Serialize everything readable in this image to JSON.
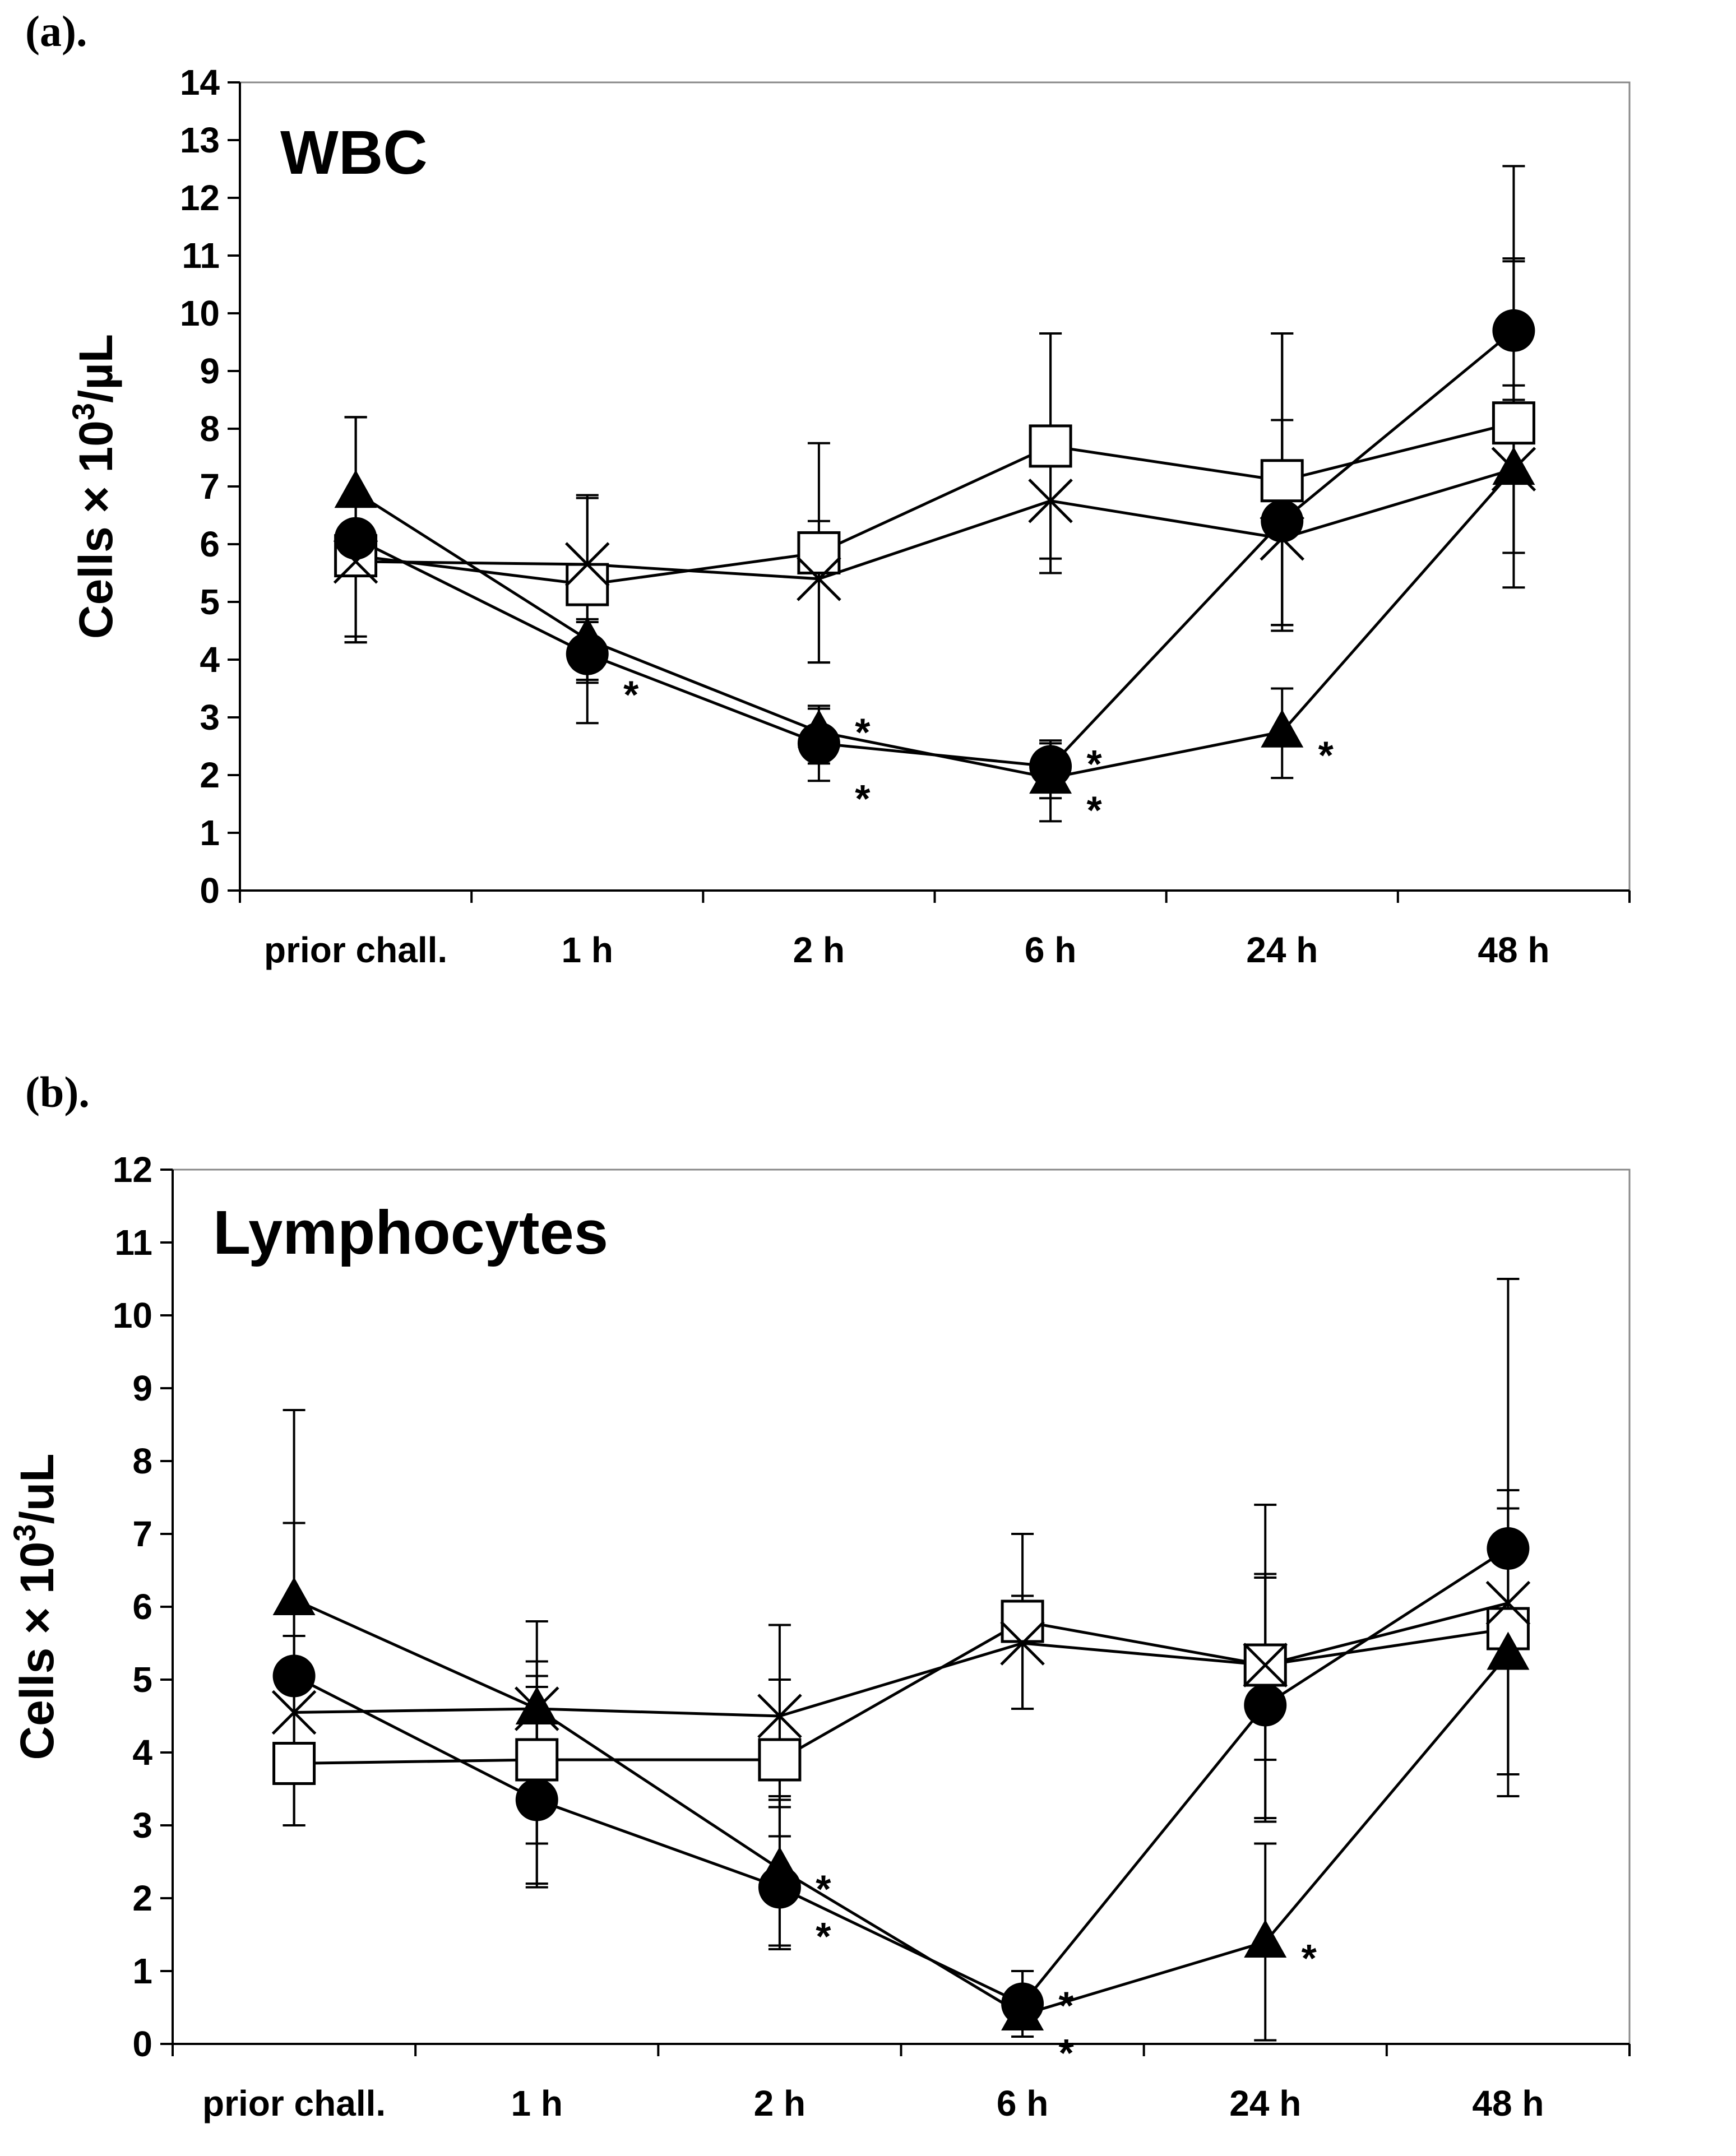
{
  "chart_data": [
    {
      "type": "line",
      "panel_label": "(a).",
      "title": "WBC",
      "ylabel_main": "Cells × 10",
      "ylabel_sup": "3",
      "ylabel_unit": "/µL",
      "ylim": [
        0,
        14
      ],
      "yticks": [
        "0",
        "1",
        "2",
        "3",
        "4",
        "5",
        "6",
        "7",
        "8",
        "9",
        "10",
        "11",
        "12",
        "13",
        "14"
      ],
      "categories": [
        "prior chall.",
        "1 h",
        "2 h",
        "6 h",
        "24 h",
        "48 h"
      ],
      "series": [
        {
          "name": "circle",
          "marker": "circle",
          "values": [
            6.1,
            4.1,
            2.55,
            2.15,
            6.4,
            9.7
          ],
          "err_up": [
            2.1,
            0.55,
            0.6,
            0.45,
            3.25,
            2.85
          ],
          "err_down": [
            1.8,
            1.2,
            0.65,
            0.55,
            1.8,
            1.2
          ]
        },
        {
          "name": "triangle",
          "marker": "triangle",
          "values": [
            6.9,
            4.35,
            2.75,
            1.95,
            2.75,
            7.3
          ],
          "err_up": [
            1.3,
            0.35,
            0.45,
            0.6,
            0.75,
            1.45
          ],
          "err_down": [
            2.5,
            0.7,
            0.55,
            0.75,
            0.8,
            1.45
          ]
        },
        {
          "name": "square",
          "marker": "square",
          "values": [
            5.8,
            5.3,
            5.85,
            7.7,
            7.1,
            8.1
          ],
          "err_up": [
            2.4,
            1.5,
            1.9,
            1.95,
            2.55,
            2.85
          ],
          "err_down": [
            1.5,
            1.7,
            1.9,
            2.2,
            2.5,
            2.85
          ]
        },
        {
          "name": "cross",
          "marker": "cross",
          "values": [
            5.7,
            5.65,
            5.4,
            6.75,
            6.1,
            7.3
          ],
          "err_up": [
            2.5,
            1.2,
            1.0,
            2.9,
            2.05,
            3.6
          ],
          "err_down": [
            1.4,
            1.6,
            1.45,
            1.0,
            1.6,
            1.45
          ]
        }
      ],
      "annotations": [
        {
          "text": "*",
          "category_index": 1,
          "y": 3.55
        },
        {
          "text": "*",
          "category_index": 2,
          "y": 2.9
        },
        {
          "text": "*",
          "category_index": 2,
          "y": 1.75
        },
        {
          "text": "*",
          "category_index": 3,
          "y": 2.35
        },
        {
          "text": "*",
          "category_index": 3,
          "y": 1.55
        },
        {
          "text": "*",
          "category_index": 4,
          "y": 2.5
        }
      ]
    },
    {
      "type": "line",
      "panel_label": "(b).",
      "title": "Lymphocytes",
      "ylabel_main": "Cells × 10",
      "ylabel_sup": "3",
      "ylabel_unit": "/uL",
      "ylim": [
        0,
        12
      ],
      "yticks": [
        "0",
        "1",
        "2",
        "3",
        "4",
        "5",
        "6",
        "7",
        "8",
        "9",
        "10",
        "11",
        "12"
      ],
      "categories": [
        "prior chall.",
        "1 h",
        "2 h",
        "6 h",
        "24 h",
        "48 h"
      ],
      "series": [
        {
          "name": "circle",
          "marker": "circle",
          "values": [
            5.05,
            3.35,
            2.15,
            0.55,
            4.65,
            6.8
          ],
          "err_up": [
            0.55,
            1.55,
            1.25,
            0.45,
            1.8,
            0.8
          ],
          "err_down": [
            2.05,
            1.2,
            0.85,
            0.35,
            1.55,
            3.1
          ]
        },
        {
          "name": "triangle",
          "marker": "triangle",
          "values": [
            6.1,
            4.6,
            2.4,
            0.4,
            1.4,
            5.35
          ],
          "err_up": [
            2.6,
            0.65,
            0.95,
            0.6,
            1.35,
            2.0
          ],
          "err_down": [
            3.1,
            2.4,
            1.05,
            0.3,
            1.35,
            1.95
          ]
        },
        {
          "name": "square",
          "marker": "square",
          "values": [
            3.85,
            3.9,
            3.9,
            5.8,
            5.2,
            5.7
          ],
          "err_up": [
            1.75,
            1.15,
            1.1,
            1.2,
            1.2,
            1.9
          ],
          "err_down": [
            0.85,
            1.15,
            1.05,
            1.2,
            1.3,
            2.0
          ]
        },
        {
          "name": "cross",
          "marker": "cross",
          "values": [
            4.55,
            4.6,
            4.5,
            5.5,
            5.2,
            6.05
          ],
          "err_up": [
            2.6,
            1.2,
            1.25,
            0.65,
            2.2,
            4.45
          ],
          "err_down": [
            1.55,
            1.1,
            1.25,
            0.9,
            2.15,
            2.35
          ]
        }
      ],
      "annotations": [
        {
          "text": "*",
          "category_index": 2,
          "y": 2.25
        },
        {
          "text": "*",
          "category_index": 2,
          "y": 1.6
        },
        {
          "text": "*",
          "category_index": 3,
          "y": 0.65
        },
        {
          "text": "*",
          "category_index": 3,
          "y": 0.0
        },
        {
          "text": "*",
          "category_index": 4,
          "y": 1.3
        }
      ]
    }
  ]
}
